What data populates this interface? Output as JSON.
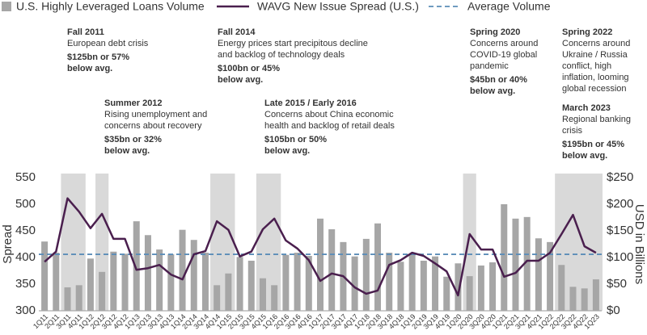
{
  "chart_data": {
    "type": "combo",
    "legend": "top",
    "categories": [
      "1Q11",
      "2Q11",
      "3Q11",
      "4Q11",
      "1Q12",
      "2Q12",
      "3Q12",
      "4Q12",
      "1Q13",
      "2Q13",
      "3Q13",
      "4Q13",
      "1Q14",
      "2Q14",
      "3Q14",
      "4Q14",
      "1Q15",
      "2Q15",
      "3Q15",
      "4Q15",
      "1Q16",
      "2Q16",
      "3Q16",
      "4Q16",
      "1Q17",
      "2Q17",
      "3Q17",
      "4Q17",
      "1Q18",
      "2Q18",
      "3Q18",
      "4Q18",
      "1Q19",
      "2Q19",
      "3Q19",
      "4Q19",
      "1Q20",
      "2Q20",
      "3Q20",
      "4Q20",
      "1Q21",
      "2Q21",
      "3Q21",
      "4Q21",
      "1Q22",
      "2Q22",
      "3Q22",
      "4Q22",
      "1Q23"
    ],
    "series": [
      {
        "name": "U.S. Highly Leveraged Loans Volume",
        "type": "bar",
        "axis": "y2",
        "color": "#a6a6a6",
        "values": [
          130,
          109,
          44,
          48,
          98,
          73,
          111,
          107,
          168,
          142,
          115,
          106,
          152,
          133,
          109,
          48,
          70,
          101,
          94,
          61,
          48,
          105,
          109,
          103,
          173,
          153,
          129,
          102,
          135,
          164,
          109,
          92,
          105,
          94,
          102,
          64,
          89,
          65,
          85,
          91,
          200,
          173,
          176,
          136,
          129,
          86,
          45,
          42,
          59
        ]
      },
      {
        "name": "WAVG New Issue Spread (U.S.)",
        "type": "line",
        "color": "#4a1f4e",
        "values": [
          392,
          411,
          511,
          486,
          455,
          482,
          435,
          435,
          377,
          380,
          386,
          368,
          359,
          406,
          412,
          468,
          452,
          402,
          411,
          453,
          473,
          432,
          417,
          395,
          356,
          370,
          365,
          344,
          332,
          338,
          386,
          395,
          409,
          403,
          389,
          374,
          329,
          444,
          415,
          415,
          364,
          371,
          394,
          394,
          409,
          444,
          480,
          421,
          409
        ]
      }
    ],
    "reference_lines": [
      {
        "name": "Average Volume",
        "value": 106,
        "axis": "y2",
        "color": "#5b8db8",
        "style": "dashed"
      }
    ],
    "shaded_periods": [
      {
        "from": "3Q11",
        "to": "4Q11"
      },
      {
        "from": "2Q12",
        "to": "2Q12"
      },
      {
        "from": "4Q14",
        "to": "1Q15"
      },
      {
        "from": "4Q15",
        "to": "1Q16"
      },
      {
        "from": "2Q20",
        "to": "2Q20"
      },
      {
        "from": "2Q22",
        "to": "1Q23"
      }
    ],
    "ylabel": "Spread",
    "y2label": "USD in Billions",
    "ylim": [
      300,
      550
    ],
    "yticks": [
      300,
      350,
      400,
      450,
      500,
      550
    ],
    "y2lim": [
      0,
      250
    ],
    "y2ticks": [
      {
        "value": 0,
        "label": "$0"
      },
      {
        "value": 50,
        "label": "$50"
      },
      {
        "value": 100,
        "label": "$100"
      },
      {
        "value": 150,
        "label": "$150"
      },
      {
        "value": 200,
        "label": "$200"
      },
      {
        "value": 250,
        "label": "$250"
      }
    ],
    "annotations": [
      {
        "title": "Fall 2011",
        "lines": [
          "European debt crisis"
        ],
        "highlight": [
          "$125bn or 57%",
          "below avg."
        ]
      },
      {
        "title": "Summer 2012",
        "lines": [
          "Rising unemployment and",
          "concerns about recovery"
        ],
        "highlight": [
          "$35bn or 32%",
          "below avg."
        ]
      },
      {
        "title": "Fall 2014",
        "lines": [
          "Energy prices start precipitous decline",
          "and backlog of technology deals"
        ],
        "highlight": [
          "$100bn or 45%",
          "below avg."
        ]
      },
      {
        "title": "Late 2015 / Early 2016",
        "lines": [
          "Concerns about China economic",
          "health and backlog of retail deals"
        ],
        "highlight": [
          "$105bn or 50%",
          "below avg."
        ]
      },
      {
        "title": "Spring 2020",
        "lines": [
          "Concerns around",
          "COVID-19 global",
          "pandemic"
        ],
        "highlight": [
          "$45bn or 40%",
          "below avg."
        ]
      },
      {
        "title": "Spring 2022",
        "lines": [
          "Concerns around",
          "Ukraine / Russia",
          "conflict, high",
          "inflation, looming",
          "global recession"
        ],
        "highlight": []
      },
      {
        "title": "March 2023",
        "lines": [
          "Regional banking",
          "crisis"
        ],
        "highlight": [
          "$195bn or 45%",
          "below avg."
        ]
      }
    ]
  }
}
